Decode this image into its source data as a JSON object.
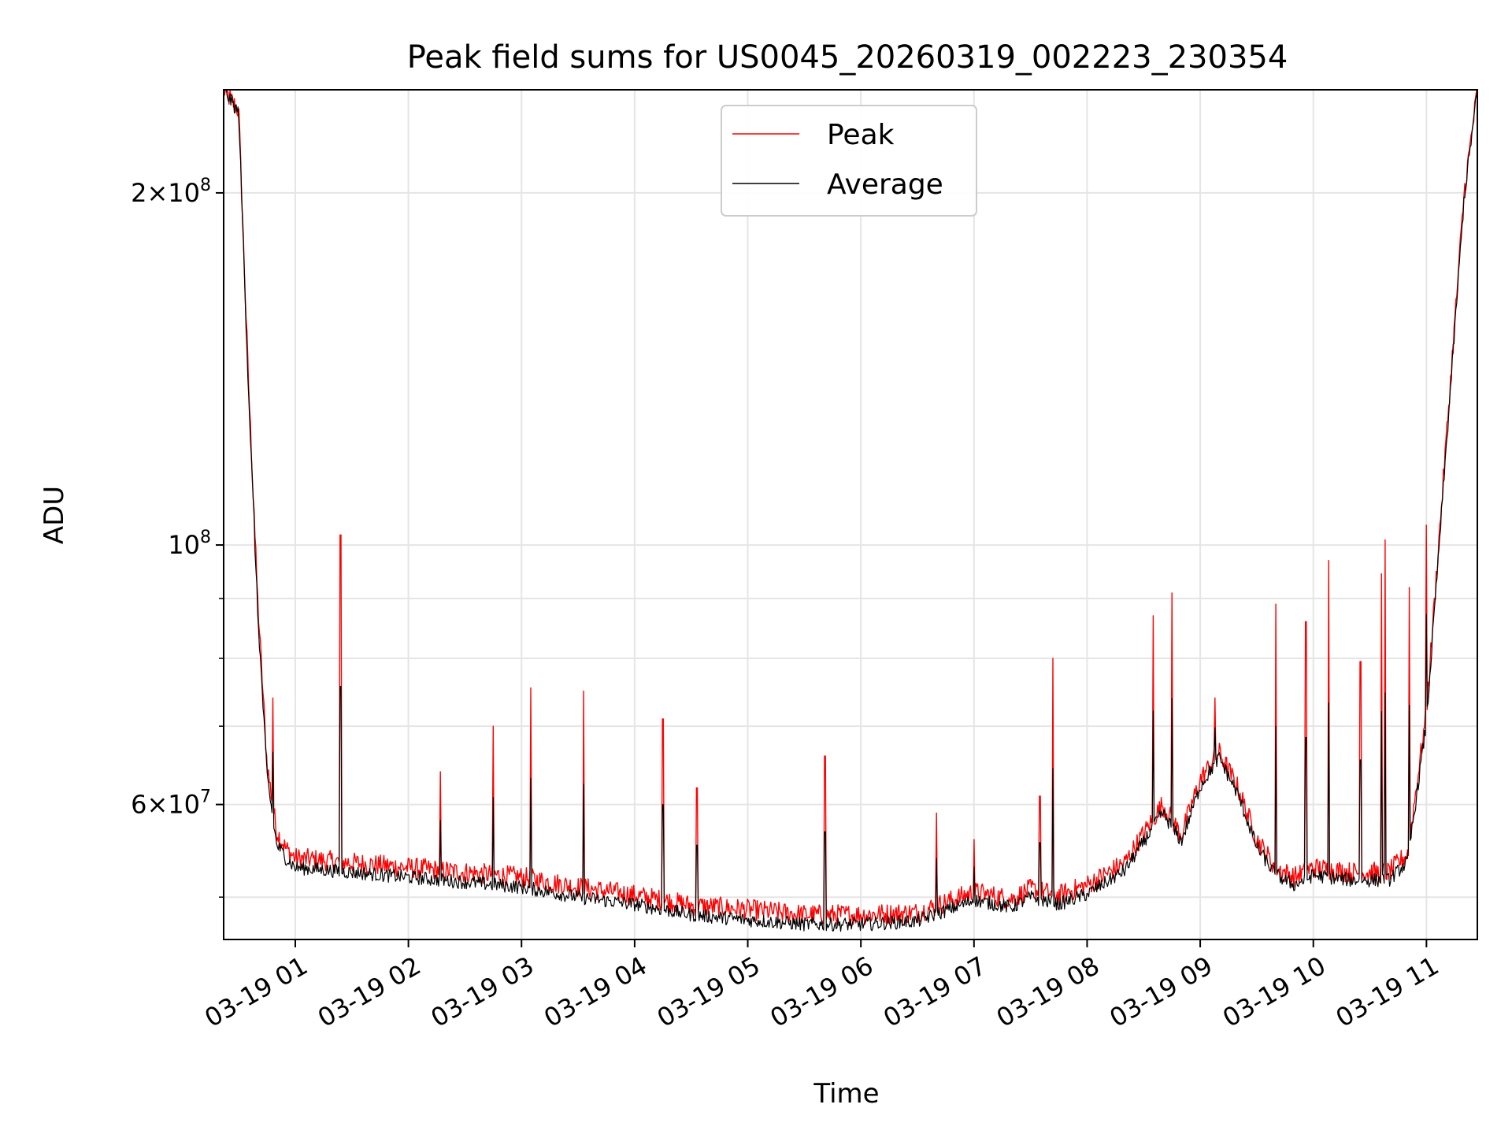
{
  "chart_data": {
    "type": "line",
    "title": "Peak field sums for US0045_20260319_002223_230354",
    "xlabel": "Time",
    "ylabel": "ADU",
    "y_scale": "log",
    "grid": true,
    "legend_position": "top-center",
    "xlim": [
      "03-19 00:22",
      "03-19 11:27"
    ],
    "ylim": [
      46000000,
      245000000
    ],
    "x_ticks": [
      "03-19 01",
      "03-19 02",
      "03-19 03",
      "03-19 04",
      "03-19 05",
      "03-19 06",
      "03-19 07",
      "03-19 08",
      "03-19 09",
      "03-19 10",
      "03-19 11"
    ],
    "y_ticks": [
      {
        "value": 200000000,
        "mantissa": "2",
        "exp": "8"
      },
      {
        "value": 100000000,
        "mantissa": "",
        "exp": "8"
      },
      {
        "value": 60000000,
        "mantissa": "6",
        "exp": "7"
      }
    ],
    "series": [
      {
        "name": "Peak",
        "color": "#ff0000",
        "x": [
          "03-19 00:22",
          "03-19 00:30",
          "03-19 00:35",
          "03-19 00:40",
          "03-19 00:45",
          "03-19 00:50",
          "03-19 00:55",
          "03-19 01:00",
          "03-19 01:30",
          "03-19 02:00",
          "03-19 02:30",
          "03-19 03:00",
          "03-19 03:30",
          "03-19 04:00",
          "03-19 04:30",
          "03-19 05:00",
          "03-19 05:30",
          "03-19 06:00",
          "03-19 06:30",
          "03-19 07:00",
          "03-19 07:20",
          "03-19 07:30",
          "03-19 07:45",
          "03-19 08:00",
          "03-19 08:20",
          "03-19 08:40",
          "03-19 08:50",
          "03-19 09:00",
          "03-19 09:10",
          "03-19 09:20",
          "03-19 09:30",
          "03-19 09:40",
          "03-19 09:50",
          "03-19 10:00",
          "03-19 10:20",
          "03-19 10:40",
          "03-19 10:50",
          "03-19 11:00",
          "03-19 11:10",
          "03-19 11:20",
          "03-19 11:27"
        ],
        "values": [
          245000000,
          235000000,
          140000000,
          90000000,
          65000000,
          57000000,
          55000000,
          54000000,
          53500000,
          53000000,
          52500000,
          52000000,
          51000000,
          50200000,
          49200000,
          48800000,
          48300000,
          48300000,
          48500000,
          50500000,
          49800000,
          50800000,
          50200000,
          51200000,
          53500000,
          60000000,
          56500000,
          63000000,
          66500000,
          62000000,
          56000000,
          53000000,
          52000000,
          53000000,
          52500000,
          52500000,
          54500000,
          72000000,
          120000000,
          200000000,
          245000000
        ]
      },
      {
        "name": "Average",
        "color": "#000000",
        "x": [
          "03-19 00:22",
          "03-19 00:30",
          "03-19 00:35",
          "03-19 00:40",
          "03-19 00:45",
          "03-19 00:50",
          "03-19 00:55",
          "03-19 01:00",
          "03-19 01:30",
          "03-19 02:00",
          "03-19 02:30",
          "03-19 03:00",
          "03-19 03:30",
          "03-19 04:00",
          "03-19 04:30",
          "03-19 05:00",
          "03-19 05:30",
          "03-19 06:00",
          "03-19 06:30",
          "03-19 07:00",
          "03-19 07:20",
          "03-19 07:30",
          "03-19 07:45",
          "03-19 08:00",
          "03-19 08:20",
          "03-19 08:40",
          "03-19 08:50",
          "03-19 09:00",
          "03-19 09:10",
          "03-19 09:20",
          "03-19 09:30",
          "03-19 09:40",
          "03-19 09:50",
          "03-19 10:00",
          "03-19 10:20",
          "03-19 10:40",
          "03-19 10:50",
          "03-19 11:00",
          "03-19 11:10",
          "03-19 11:20",
          "03-19 11:27"
        ],
        "values": [
          245000000,
          234000000,
          138000000,
          88000000,
          63500000,
          55500000,
          54000000,
          53000000,
          52500000,
          52000000,
          51500000,
          51000000,
          50000000,
          49300000,
          48300000,
          47800000,
          47400000,
          47400000,
          47700000,
          49700000,
          49000000,
          50000000,
          49300000,
          50300000,
          52700000,
          59000000,
          55800000,
          62200000,
          65800000,
          61200000,
          55200000,
          52200000,
          51200000,
          52200000,
          51700000,
          51700000,
          53600000,
          70500000,
          118000000,
          198000000,
          245000000
        ]
      }
    ],
    "annotations": {
      "peak_spikes": [
        {
          "x": "03-19 00:38",
          "value": 107000000
        },
        {
          "x": "03-19 00:48",
          "value": 74000000
        },
        {
          "x": "03-19 01:24",
          "value": 102000000
        },
        {
          "x": "03-19 02:17",
          "value": 64000000
        },
        {
          "x": "03-19 02:45",
          "value": 70000000
        },
        {
          "x": "03-19 03:05",
          "value": 75500000
        },
        {
          "x": "03-19 03:33",
          "value": 75000000
        },
        {
          "x": "03-19 04:15",
          "value": 71000000
        },
        {
          "x": "03-19 04:33",
          "value": 62000000
        },
        {
          "x": "03-19 05:41",
          "value": 66000000
        },
        {
          "x": "03-19 06:40",
          "value": 59000000
        },
        {
          "x": "03-19 07:00",
          "value": 56000000
        },
        {
          "x": "03-19 07:35",
          "value": 61000000
        },
        {
          "x": "03-19 07:42",
          "value": 80000000
        },
        {
          "x": "03-19 08:35",
          "value": 87000000
        },
        {
          "x": "03-19 08:45",
          "value": 91000000
        },
        {
          "x": "03-19 09:08",
          "value": 74000000
        },
        {
          "x": "03-19 09:40",
          "value": 89000000
        },
        {
          "x": "03-19 09:56",
          "value": 86000000
        },
        {
          "x": "03-19 10:08",
          "value": 97000000
        },
        {
          "x": "03-19 10:25",
          "value": 79500000
        },
        {
          "x": "03-19 10:36",
          "value": 94500000
        },
        {
          "x": "03-19 10:38",
          "value": 101000000
        },
        {
          "x": "03-19 10:51",
          "value": 92000000
        },
        {
          "x": "03-19 11:00",
          "value": 104000000
        }
      ]
    }
  }
}
